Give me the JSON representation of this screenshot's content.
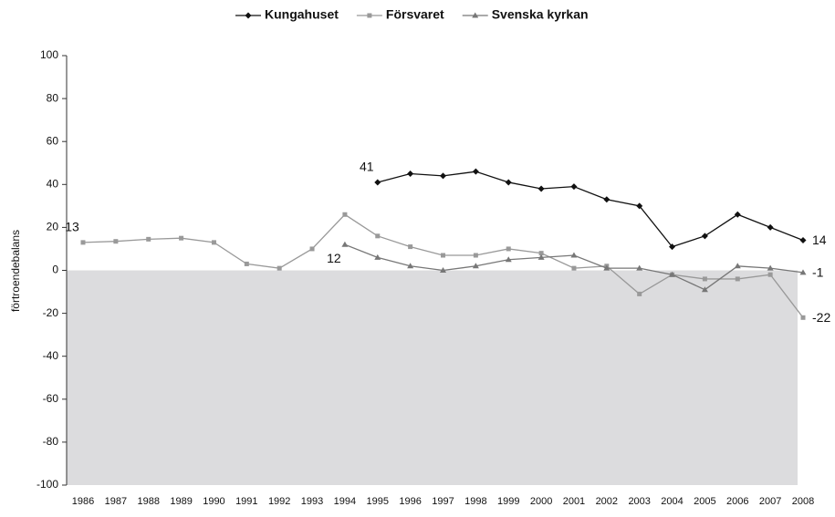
{
  "chart_data": {
    "type": "line",
    "ylabel": "förtroendebalans",
    "categories": [
      "1986",
      "1987",
      "1988",
      "1989",
      "1990",
      "1991",
      "1992",
      "1993",
      "1994",
      "1995",
      "1996",
      "1997",
      "1998",
      "1999",
      "2000",
      "2001",
      "2002",
      "2003",
      "2004",
      "2005",
      "2006",
      "2007",
      "2008"
    ],
    "series": [
      {
        "name": "Kungahuset",
        "color": "#111111",
        "marker": "diamond",
        "values": [
          null,
          null,
          null,
          null,
          null,
          null,
          null,
          null,
          null,
          41,
          45,
          44,
          46,
          41,
          38,
          39,
          33,
          30,
          11,
          16,
          26,
          20,
          14
        ],
        "value_labels": [
          null,
          null,
          null,
          null,
          null,
          null,
          null,
          null,
          null,
          "41",
          null,
          null,
          null,
          null,
          null,
          null,
          null,
          null,
          null,
          null,
          null,
          null,
          "14"
        ]
      },
      {
        "name": "Försvaret",
        "color": "#999999",
        "marker": "square",
        "values": [
          13,
          13.5,
          14.5,
          15,
          13,
          3,
          1,
          10,
          26,
          16,
          11,
          7,
          7,
          10,
          8,
          1,
          2,
          -11,
          -2,
          -4,
          -4,
          -2,
          -22
        ],
        "value_labels": [
          "13",
          null,
          null,
          null,
          null,
          null,
          null,
          null,
          null,
          null,
          null,
          null,
          null,
          null,
          null,
          null,
          null,
          null,
          null,
          null,
          null,
          null,
          "-22"
        ]
      },
      {
        "name": "Svenska kyrkan",
        "color": "#777777",
        "marker": "triangle",
        "values": [
          null,
          null,
          null,
          null,
          null,
          null,
          null,
          null,
          12,
          6,
          2,
          0,
          2,
          5,
          6,
          7,
          1,
          1,
          -2,
          -9,
          2,
          1,
          -1
        ],
        "value_labels": [
          null,
          null,
          null,
          null,
          null,
          null,
          null,
          null,
          "12",
          null,
          null,
          null,
          null,
          null,
          null,
          null,
          null,
          null,
          null,
          null,
          null,
          null,
          "-1"
        ]
      }
    ],
    "ylim": [
      -100,
      100
    ],
    "yticks": [
      -100,
      -80,
      -60,
      -40,
      -20,
      0,
      20,
      40,
      60,
      80,
      100
    ],
    "shade_below_zero": true,
    "legend": "top"
  }
}
